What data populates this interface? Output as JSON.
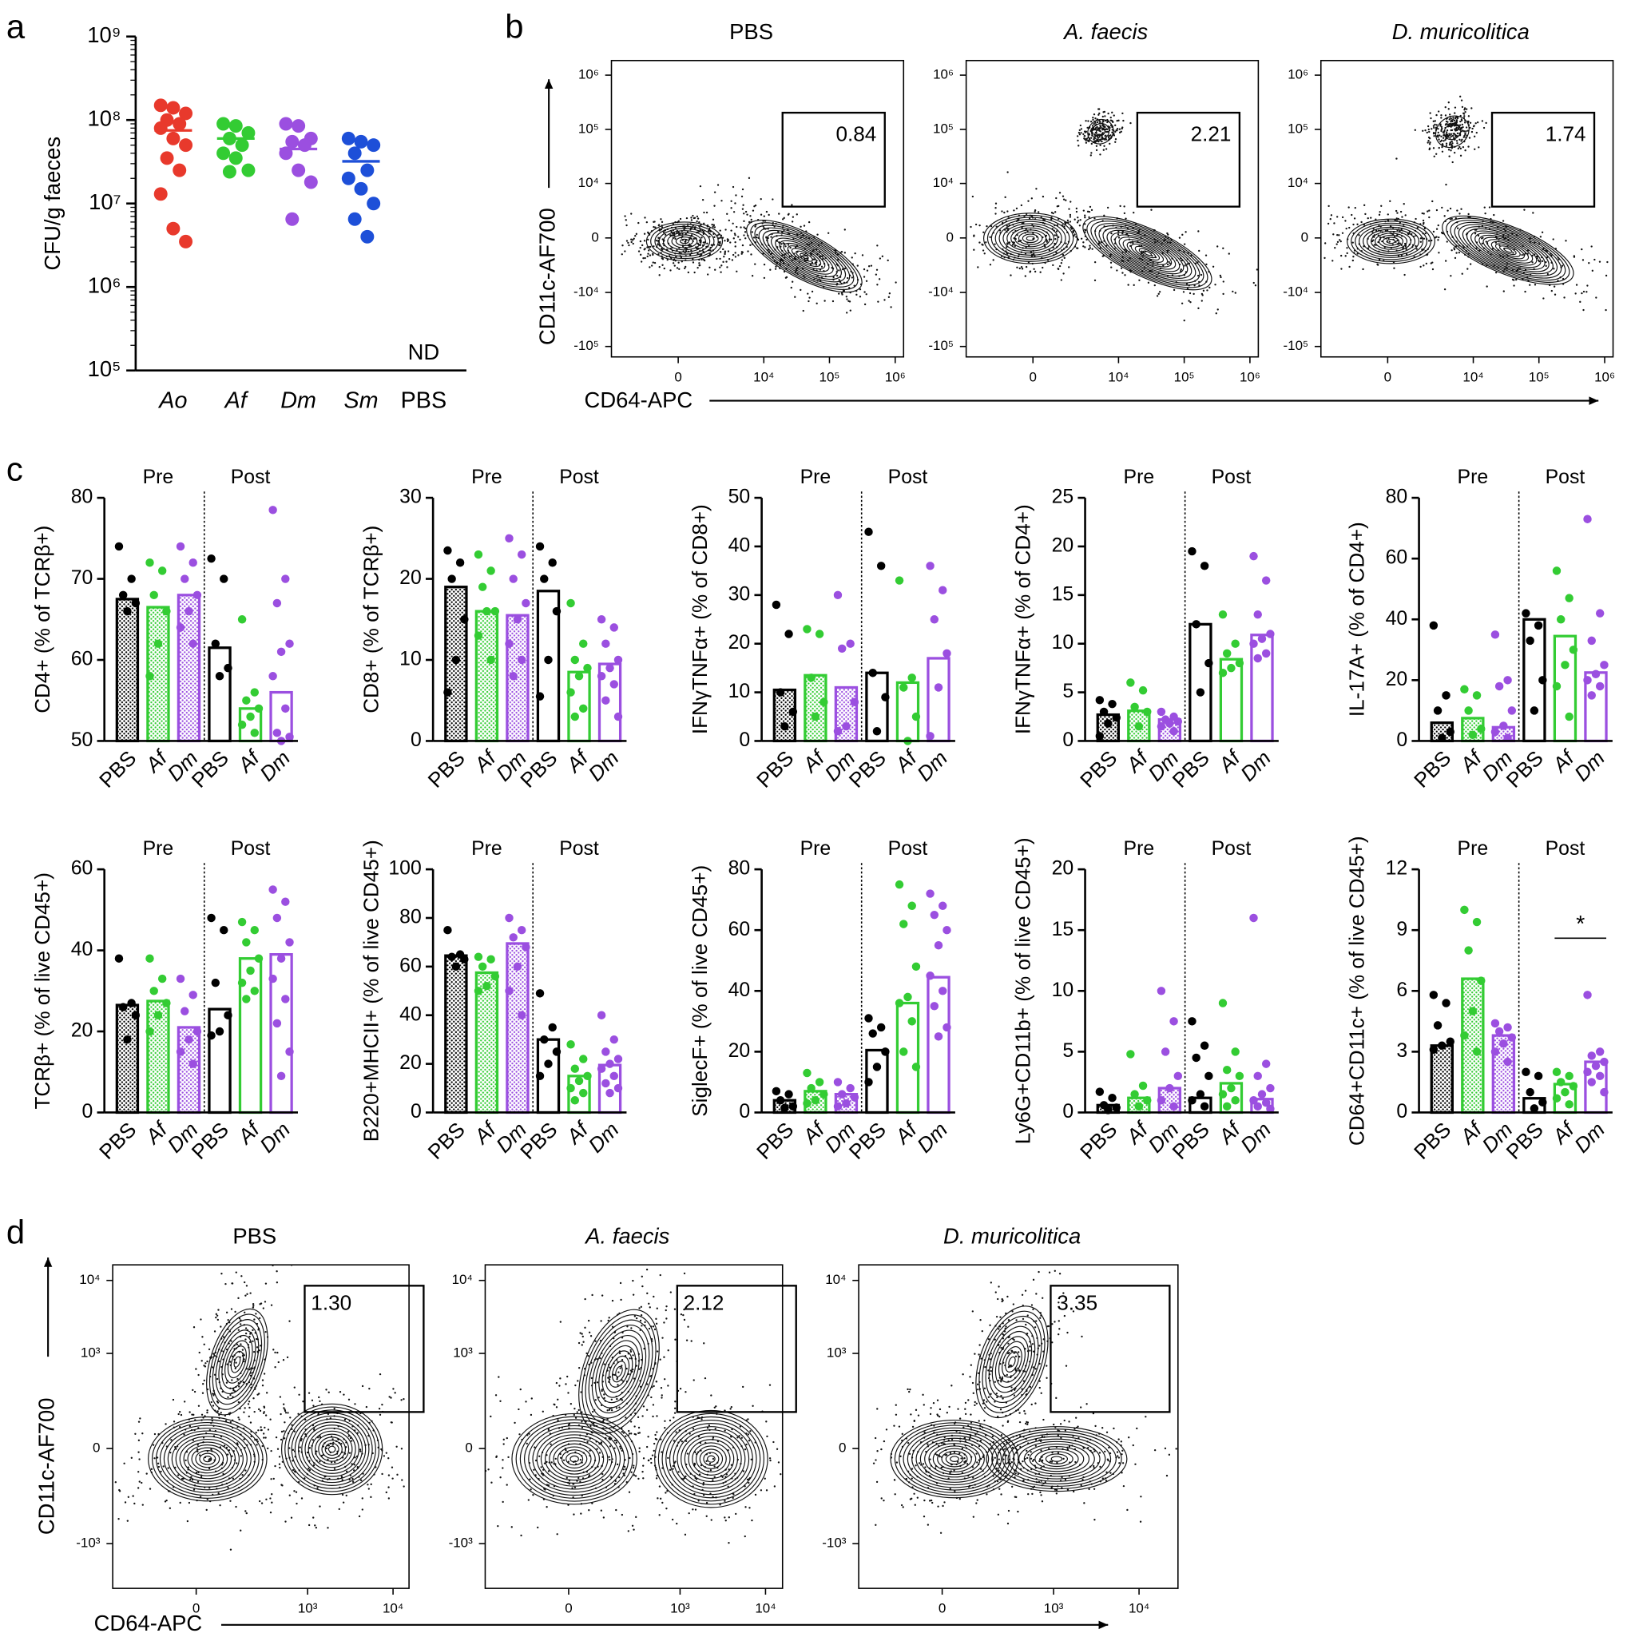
{
  "panels": [
    "a",
    "b",
    "c",
    "d"
  ],
  "chart_data": [
    {
      "type": "dot",
      "y_label": "CFU/g faeces",
      "log_y": true,
      "ylim": [
        100000,
        1000000000
      ],
      "yticks": [
        {
          "value": 100000,
          "label": "10⁵"
        },
        {
          "value": 1000000,
          "label": "10⁶"
        },
        {
          "value": 10000000,
          "label": "10⁷"
        },
        {
          "value": 100000000,
          "label": "10⁸"
        },
        {
          "value": 1000000000,
          "label": "10⁹"
        }
      ],
      "groups": [
        {
          "name": "Ao",
          "color": "#e8392c",
          "italic": true,
          "median": 75000000,
          "values": [
            150000000,
            140000000,
            120000000,
            100000000,
            90000000,
            80000000,
            60000000,
            50000000,
            35000000,
            25000000,
            13000000,
            5000000,
            3500000
          ]
        },
        {
          "name": "Af",
          "color": "#33cc33",
          "italic": true,
          "median": 60000000,
          "values": [
            90000000,
            85000000,
            70000000,
            60000000,
            50000000,
            40000000,
            35000000,
            25000000,
            24000000
          ]
        },
        {
          "name": "Dm",
          "color": "#9b4fe0",
          "italic": true,
          "median": 45000000,
          "values": [
            90000000,
            85000000,
            60000000,
            55000000,
            50000000,
            40000000,
            25000000,
            18000000,
            6500000
          ]
        },
        {
          "name": "Sm",
          "color": "#1d4fd8",
          "italic": true,
          "median": 32000000,
          "values": [
            60000000,
            55000000,
            50000000,
            40000000,
            25000000,
            20000000,
            15000000,
            10000000,
            6500000,
            4000000
          ]
        },
        {
          "name": "PBS",
          "color": "#000000",
          "italic": false,
          "median": null,
          "values": []
        }
      ],
      "annotation": "ND"
    },
    {
      "type": "bar",
      "y_label": "CD4+ (% of TCRβ+)",
      "groups": [
        "Pre",
        "Post"
      ],
      "categories": [
        "PBS",
        "Af",
        "Dm",
        "PBS",
        "Af",
        "Dm"
      ],
      "italic": [
        false,
        true,
        true,
        false,
        true,
        true
      ],
      "colors": [
        "#000000",
        "#33cc33",
        "#9b4fe0",
        "#000000",
        "#33cc33",
        "#9b4fe0"
      ],
      "fills": [
        "dotted",
        "dotted",
        "dotted",
        "open",
        "open",
        "open"
      ],
      "ylim": [
        50,
        80
      ],
      "yticks": [
        50,
        60,
        70,
        80
      ],
      "values": [
        67.5,
        66.5,
        68,
        61.5,
        54,
        56
      ],
      "points": [
        [
          74,
          70,
          68,
          67,
          66
        ],
        [
          72,
          71,
          68,
          66,
          62,
          58
        ],
        [
          74,
          72,
          70,
          68,
          66,
          64,
          62
        ],
        [
          72.5,
          70,
          62,
          59,
          58
        ],
        [
          65,
          56,
          55,
          54,
          53,
          52,
          51
        ],
        [
          78.5,
          70,
          67,
          62,
          61,
          58,
          54,
          51,
          50.5,
          50
        ]
      ]
    },
    {
      "type": "bar",
      "y_label": "CD8+ (% of TCRβ+)",
      "groups": [
        "Pre",
        "Post"
      ],
      "categories": [
        "PBS",
        "Af",
        "Dm",
        "PBS",
        "Af",
        "Dm"
      ],
      "italic": [
        false,
        true,
        true,
        false,
        true,
        true
      ],
      "colors": [
        "#000000",
        "#33cc33",
        "#9b4fe0",
        "#000000",
        "#33cc33",
        "#9b4fe0"
      ],
      "fills": [
        "dotted",
        "dotted",
        "dotted",
        "open",
        "open",
        "open"
      ],
      "ylim": [
        0,
        30
      ],
      "yticks": [
        0,
        10,
        20,
        30
      ],
      "values": [
        19,
        16,
        15.5,
        18.5,
        8.5,
        9.5
      ],
      "points": [
        [
          23.5,
          22,
          20,
          15,
          10,
          6
        ],
        [
          23,
          21,
          19,
          16,
          16,
          13,
          10
        ],
        [
          25,
          23,
          20,
          17,
          15,
          12,
          10,
          8
        ],
        [
          24,
          22,
          20,
          16,
          10,
          5.5
        ],
        [
          17,
          12,
          10,
          9,
          8,
          6,
          4,
          3
        ],
        [
          15,
          14,
          12,
          10,
          9,
          8,
          7,
          5,
          3
        ]
      ]
    },
    {
      "type": "bar",
      "y_label": "IFNγTNFα+ (% of CD8+)",
      "groups": [
        "Pre",
        "Post"
      ],
      "categories": [
        "PBS",
        "Af",
        "Dm",
        "PBS",
        "Af",
        "Dm"
      ],
      "italic": [
        false,
        true,
        true,
        false,
        true,
        true
      ],
      "colors": [
        "#000000",
        "#33cc33",
        "#9b4fe0",
        "#000000",
        "#33cc33",
        "#9b4fe0"
      ],
      "fills": [
        "dotted",
        "dotted",
        "dotted",
        "open",
        "open",
        "open"
      ],
      "ylim": [
        0,
        50
      ],
      "yticks": [
        0,
        10,
        20,
        30,
        40,
        50
      ],
      "values": [
        10.5,
        13.5,
        11,
        14,
        12,
        17
      ],
      "points": [
        [
          28,
          22,
          10,
          6,
          3
        ],
        [
          23,
          22,
          13,
          8,
          5
        ],
        [
          30,
          20,
          19,
          8,
          3,
          2
        ],
        [
          43,
          36,
          14,
          9,
          2
        ],
        [
          33,
          13,
          11,
          5,
          0
        ],
        [
          36,
          31,
          25,
          18,
          11,
          1
        ]
      ]
    },
    {
      "type": "bar",
      "y_label": "IFNγTNFα+ (% of CD4+)",
      "groups": [
        "Pre",
        "Post"
      ],
      "categories": [
        "PBS",
        "Af",
        "Dm",
        "PBS",
        "Af",
        "Dm"
      ],
      "italic": [
        false,
        true,
        true,
        false,
        true,
        true
      ],
      "colors": [
        "#000000",
        "#33cc33",
        "#9b4fe0",
        "#000000",
        "#33cc33",
        "#9b4fe0"
      ],
      "fills": [
        "dotted",
        "dotted",
        "dotted",
        "open",
        "open",
        "open"
      ],
      "ylim": [
        0,
        25
      ],
      "yticks": [
        0,
        5,
        10,
        15,
        20,
        25
      ],
      "values": [
        2.7,
        3.1,
        2.2,
        12,
        8.4,
        10.9
      ],
      "points": [
        [
          4.2,
          3.8,
          3,
          2.4,
          1.8,
          0.5
        ],
        [
          6,
          5.2,
          3.5,
          3,
          1.5
        ],
        [
          3,
          2.5,
          2.2,
          2,
          1.8,
          1.5,
          1
        ],
        [
          19.5,
          18,
          12,
          8,
          5
        ],
        [
          13,
          10,
          9,
          8,
          7.5,
          7
        ],
        [
          19,
          16.5,
          13,
          11,
          10.5,
          10,
          9,
          8.5
        ]
      ]
    },
    {
      "type": "bar",
      "y_label": "IL-17A+ (% of CD4+)",
      "groups": [
        "Pre",
        "Post"
      ],
      "categories": [
        "PBS",
        "Af",
        "Dm",
        "PBS",
        "Af",
        "Dm"
      ],
      "italic": [
        false,
        true,
        true,
        false,
        true,
        true
      ],
      "colors": [
        "#000000",
        "#33cc33",
        "#9b4fe0",
        "#000000",
        "#33cc33",
        "#9b4fe0"
      ],
      "fills": [
        "dotted",
        "dotted",
        "dotted",
        "open",
        "open",
        "open"
      ],
      "ylim": [
        0,
        80
      ],
      "yticks": [
        0,
        20,
        40,
        60,
        80
      ],
      "values": [
        6,
        7.5,
        4.5,
        40,
        34.5,
        22.5
      ],
      "points": [
        [
          38,
          15,
          10,
          3,
          1
        ],
        [
          17,
          15,
          10,
          4,
          2
        ],
        [
          35,
          20,
          18,
          10,
          5,
          3,
          1
        ],
        [
          42,
          38,
          33,
          20,
          10
        ],
        [
          56,
          47,
          40,
          30,
          25,
          18,
          8
        ],
        [
          73,
          42,
          33,
          25,
          22,
          20,
          18,
          15
        ]
      ]
    },
    {
      "type": "bar",
      "y_label": "TCRβ+ (% of live CD45+)",
      "groups": [
        "Pre",
        "Post"
      ],
      "categories": [
        "PBS",
        "Af",
        "Dm",
        "PBS",
        "Af",
        "Dm"
      ],
      "italic": [
        false,
        true,
        true,
        false,
        true,
        true
      ],
      "colors": [
        "#000000",
        "#33cc33",
        "#9b4fe0",
        "#000000",
        "#33cc33",
        "#9b4fe0"
      ],
      "fills": [
        "dotted",
        "dotted",
        "dotted",
        "open",
        "open",
        "open"
      ],
      "ylim": [
        0,
        60
      ],
      "yticks": [
        0,
        20,
        40,
        60
      ],
      "values": [
        26.5,
        27.5,
        21,
        25.5,
        38,
        39
      ],
      "points": [
        [
          38,
          27,
          26,
          24,
          18
        ],
        [
          38,
          33,
          30,
          27,
          24,
          20
        ],
        [
          33,
          29,
          25,
          20,
          18,
          15,
          12
        ],
        [
          48,
          45,
          32,
          24,
          20,
          19
        ],
        [
          47,
          45,
          42,
          38,
          35,
          32,
          30,
          28
        ],
        [
          55,
          52,
          48,
          42,
          38,
          33,
          28,
          22,
          15,
          9
        ]
      ]
    },
    {
      "type": "bar",
      "y_label": "B220+MHCII+ (% of live CD45+)",
      "groups": [
        "Pre",
        "Post"
      ],
      "categories": [
        "PBS",
        "Af",
        "Dm",
        "PBS",
        "Af",
        "Dm"
      ],
      "italic": [
        false,
        true,
        true,
        false,
        true,
        true
      ],
      "colors": [
        "#000000",
        "#33cc33",
        "#9b4fe0",
        "#000000",
        "#33cc33",
        "#9b4fe0"
      ],
      "fills": [
        "dotted",
        "dotted",
        "dotted",
        "open",
        "open",
        "open"
      ],
      "ylim": [
        0,
        100
      ],
      "yticks": [
        0,
        20,
        40,
        60,
        80,
        100
      ],
      "values": [
        64.5,
        57.5,
        69.5,
        30,
        15,
        19.5
      ],
      "points": [
        [
          75,
          65,
          64,
          63,
          60
        ],
        [
          64,
          63,
          60,
          56,
          52,
          50
        ],
        [
          80,
          75,
          72,
          68,
          60,
          50,
          40
        ],
        [
          49,
          35,
          30,
          25,
          20,
          15
        ],
        [
          28,
          22,
          18,
          15,
          13,
          10,
          8,
          5
        ],
        [
          40,
          30,
          25,
          22,
          20,
          18,
          15,
          12,
          10,
          8
        ]
      ]
    },
    {
      "type": "bar",
      "y_label": "SiglecF+ (% of live CD45+)",
      "groups": [
        "Pre",
        "Post"
      ],
      "categories": [
        "PBS",
        "Af",
        "Dm",
        "PBS",
        "Af",
        "Dm"
      ],
      "italic": [
        false,
        true,
        true,
        false,
        true,
        true
      ],
      "colors": [
        "#000000",
        "#33cc33",
        "#9b4fe0",
        "#000000",
        "#33cc33",
        "#9b4fe0"
      ],
      "fills": [
        "dotted",
        "dotted",
        "dotted",
        "open",
        "open",
        "open"
      ],
      "ylim": [
        0,
        80
      ],
      "yticks": [
        0,
        20,
        40,
        60,
        80
      ],
      "values": [
        4,
        7,
        6,
        20.5,
        36,
        44.5
      ],
      "points": [
        [
          7,
          6,
          4,
          2,
          1.5
        ],
        [
          13,
          10,
          8,
          6,
          4,
          3
        ],
        [
          10,
          8,
          6,
          5,
          3,
          2
        ],
        [
          31,
          28,
          26,
          20,
          15,
          10
        ],
        [
          75,
          68,
          62,
          48,
          38,
          36,
          30,
          20,
          15
        ],
        [
          72,
          68,
          65,
          60,
          55,
          45,
          40,
          35,
          28,
          25
        ]
      ]
    },
    {
      "type": "bar",
      "y_label": "Ly6G+CD11b+ (% of live CD45+)",
      "groups": [
        "Pre",
        "Post"
      ],
      "categories": [
        "PBS",
        "Af",
        "Dm",
        "PBS",
        "Af",
        "Dm"
      ],
      "italic": [
        false,
        true,
        true,
        false,
        true,
        true
      ],
      "colors": [
        "#000000",
        "#33cc33",
        "#9b4fe0",
        "#000000",
        "#33cc33",
        "#9b4fe0"
      ],
      "fills": [
        "dotted",
        "dotted",
        "dotted",
        "open",
        "open",
        "open"
      ],
      "ylim": [
        0,
        20
      ],
      "yticks": [
        0,
        5,
        10,
        15,
        20
      ],
      "values": [
        0.6,
        1.2,
        2,
        1.2,
        2.4,
        1.1
      ],
      "points": [
        [
          1.7,
          1.2,
          0.6,
          0.4,
          0.2
        ],
        [
          4.8,
          2.2,
          1.5,
          1,
          0.5
        ],
        [
          10,
          7.5,
          5,
          3,
          2,
          1,
          0.5
        ],
        [
          7.5,
          5.5,
          4.5,
          3,
          1.5,
          1,
          0.5
        ],
        [
          9,
          5,
          3.5,
          3,
          2,
          1.5,
          1,
          0.5
        ],
        [
          16,
          4,
          3,
          2,
          1.5,
          1,
          0.8,
          0.5,
          0.3
        ]
      ]
    },
    {
      "type": "bar",
      "y_label": "CD64+CD11c+ (% of live CD45+)",
      "groups": [
        "Pre",
        "Post"
      ],
      "categories": [
        "PBS",
        "Af",
        "Dm",
        "PBS",
        "Af",
        "Dm"
      ],
      "italic": [
        false,
        true,
        true,
        false,
        true,
        true
      ],
      "colors": [
        "#000000",
        "#33cc33",
        "#9b4fe0",
        "#000000",
        "#33cc33",
        "#9b4fe0"
      ],
      "fills": [
        "dotted",
        "dotted",
        "dotted",
        "open",
        "open",
        "open"
      ],
      "ylim": [
        0,
        12
      ],
      "yticks": [
        0,
        3,
        6,
        9,
        12
      ],
      "values": [
        3.3,
        6.6,
        3.8,
        0.7,
        1.4,
        2.5
      ],
      "points": [
        [
          5.8,
          5.4,
          4.3,
          3.5,
          3.3,
          3.1
        ],
        [
          10,
          9.4,
          8,
          6.5,
          5,
          3.8,
          3
        ],
        [
          4.4,
          4.2,
          4,
          3.7,
          3.4,
          3,
          2.5
        ],
        [
          2,
          1.8,
          1,
          0.5,
          0.2
        ],
        [
          2,
          1.8,
          1.5,
          1.3,
          1,
          0.7,
          0.4
        ],
        [
          5.8,
          3,
          2.8,
          2.5,
          2.3,
          2,
          1.8,
          1.5,
          1
        ]
      ],
      "significance": {
        "label": "*",
        "between": [
          4,
          5
        ]
      }
    }
  ],
  "flow_b": {
    "x_label": "CD64-APC",
    "y_label": "CD11c-AF700",
    "xticks": [
      0,
      {
        "value": 10000,
        "label": "10⁴"
      },
      {
        "value": 100000,
        "label": "10⁵"
      },
      {
        "value": 1000000,
        "label": "10⁶"
      }
    ],
    "yticks": [
      {
        "value": 1000000,
        "label": "10⁶"
      },
      {
        "value": 100000,
        "label": "10⁵"
      },
      {
        "value": 10000,
        "label": "10⁴"
      },
      0,
      {
        "value": -10000,
        "label": "-10⁴"
      },
      {
        "value": -100000,
        "label": "-10⁵"
      }
    ],
    "plots": [
      {
        "title": "PBS",
        "italic": false,
        "gate": 0.84
      },
      {
        "title": "A. faecis",
        "italic": true,
        "gate": 2.21
      },
      {
        "title": "D. muricolitica",
        "italic": true,
        "gate": 1.74
      }
    ]
  },
  "flow_d": {
    "x_label": "CD64-APC",
    "y_label": "CD11c-AF700",
    "xticks": [
      0,
      {
        "value": 1000,
        "label": "10³"
      },
      {
        "value": 10000,
        "label": "10⁴"
      }
    ],
    "yticks": [
      {
        "value": 10000,
        "label": "10⁴"
      },
      {
        "value": 1000,
        "label": "10³"
      },
      0,
      {
        "value": -1000,
        "label": "-10³"
      }
    ],
    "plots": [
      {
        "title": "PBS",
        "italic": false,
        "gate": 1.3,
        "gate_label": "1.30"
      },
      {
        "title": "A. faecis",
        "italic": true,
        "gate": 2.12
      },
      {
        "title": "D. muricolitica",
        "italic": true,
        "gate": 3.35
      }
    ]
  }
}
